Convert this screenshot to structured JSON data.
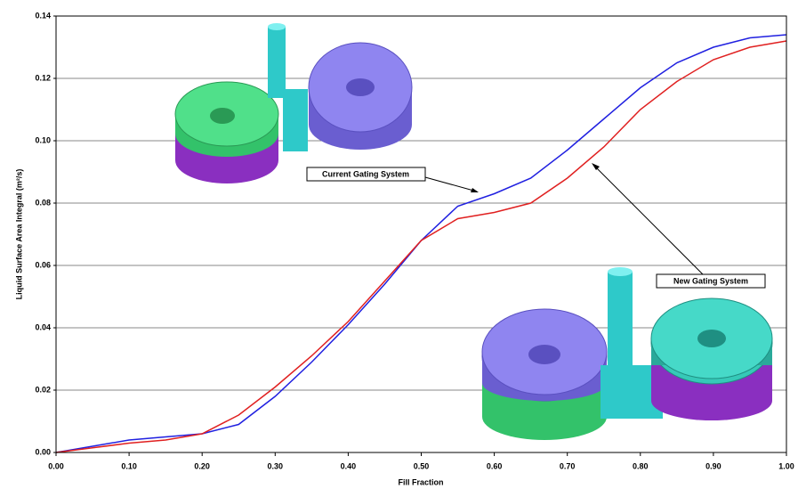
{
  "chart_data": {
    "type": "line",
    "x_label": "Fill Fraction",
    "y_label": "Liquid Surface Area Integral (m²/s)",
    "x": [
      0,
      0.05,
      0.1,
      0.15,
      0.2,
      0.25,
      0.3,
      0.35,
      0.4,
      0.45,
      0.5,
      0.55,
      0.6,
      0.65,
      0.7,
      0.75,
      0.8,
      0.85,
      0.9,
      0.95,
      1.0
    ],
    "series": [
      {
        "name": "Current Gating System",
        "color": "#2020e0",
        "values": [
          0,
          0.002,
          0.004,
          0.005,
          0.006,
          0.009,
          0.018,
          0.029,
          0.041,
          0.054,
          0.068,
          0.079,
          0.083,
          0.088,
          0.097,
          0.107,
          0.117,
          0.125,
          0.13,
          0.133,
          0.134
        ]
      },
      {
        "name": "New Gating System",
        "color": "#e02020",
        "values": [
          0,
          0.0015,
          0.003,
          0.004,
          0.006,
          0.012,
          0.021,
          0.031,
          0.042,
          0.055,
          0.068,
          0.075,
          0.077,
          0.08,
          0.088,
          0.098,
          0.11,
          0.119,
          0.126,
          0.13,
          0.132
        ]
      }
    ],
    "xlim": [
      0,
      1
    ],
    "xticks": [
      {
        "value": 0,
        "label": "0.00"
      },
      {
        "value": 0.1,
        "label": "0.10"
      },
      {
        "value": 0.2,
        "label": "0.20"
      },
      {
        "value": 0.3,
        "label": "0.30"
      },
      {
        "value": 0.4,
        "label": "0.40"
      },
      {
        "value": 0.5,
        "label": "0.50"
      },
      {
        "value": 0.6,
        "label": "0.60"
      },
      {
        "value": 0.7,
        "label": "0.70"
      },
      {
        "value": 0.8,
        "label": "0.80"
      },
      {
        "value": 0.9,
        "label": "0.90"
      },
      {
        "value": 1,
        "label": "1.00"
      }
    ],
    "ylim": [
      0,
      0.14
    ],
    "yticks": [
      {
        "value": 0,
        "label": "0.00"
      },
      {
        "value": 0.02,
        "label": "0.02"
      },
      {
        "value": 0.04,
        "label": "0.04"
      },
      {
        "value": 0.06,
        "label": "0.06"
      },
      {
        "value": 0.08,
        "label": "0.08"
      },
      {
        "value": 0.1,
        "label": "0.10"
      },
      {
        "value": 0.12,
        "label": "0.12"
      },
      {
        "value": 0.14,
        "label": "0.14"
      }
    ],
    "grid": true
  }
}
